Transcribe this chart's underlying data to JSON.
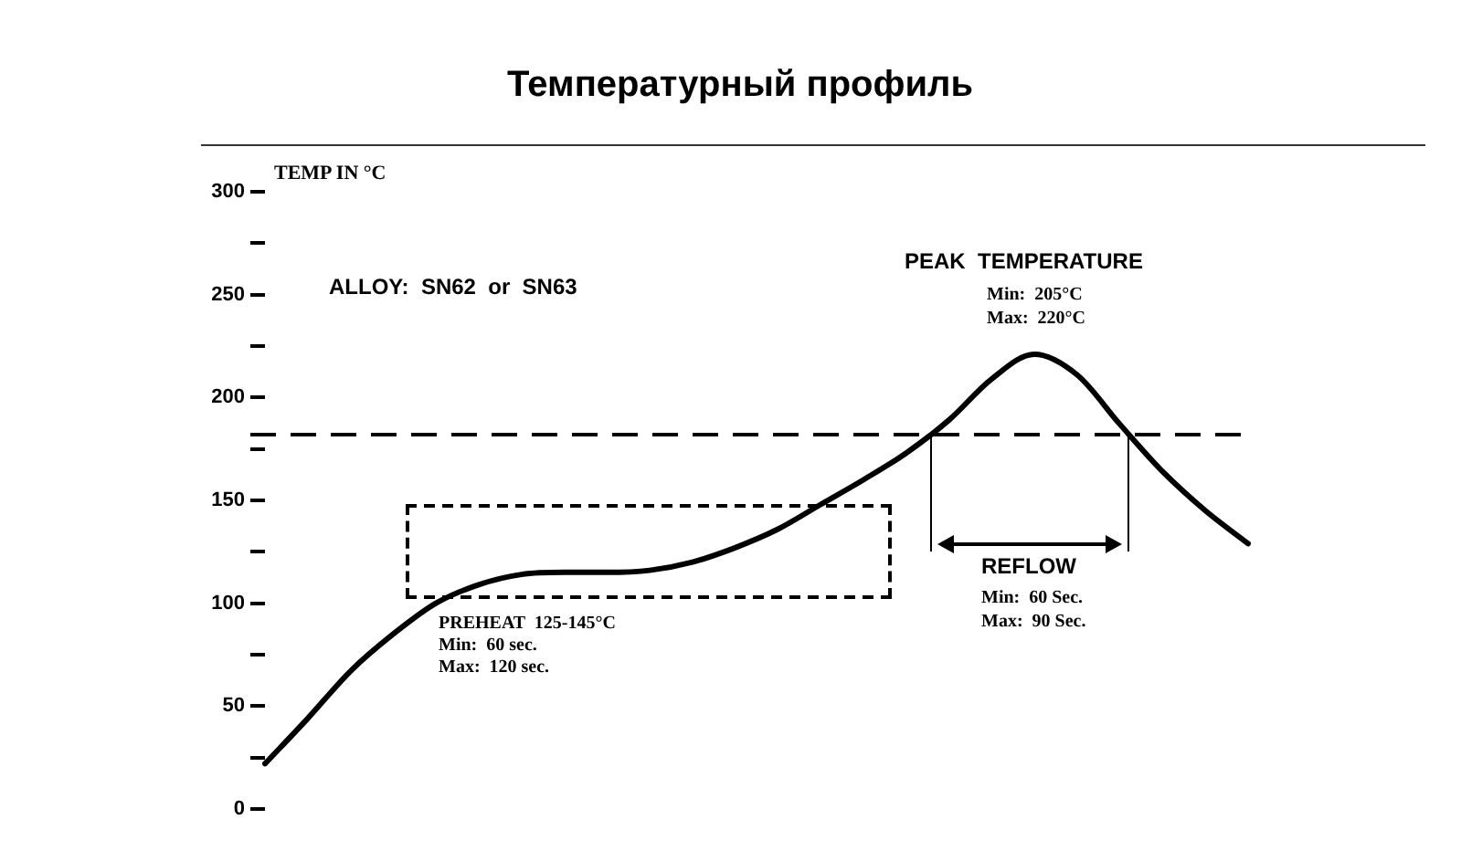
{
  "chart_data": {
    "type": "line",
    "title": "Температурный профиль",
    "ylabel": "TEMP IN °C",
    "categories": [
      null,
      null,
      null,
      null,
      null,
      null,
      null,
      null,
      null,
      null,
      null,
      null,
      null,
      null,
      null,
      null,
      null,
      null,
      null,
      null,
      null,
      null,
      null,
      null
    ],
    "series": [
      {
        "color": "#000000",
        "values": [
          22,
          44,
          67,
          85,
          100,
          109,
          114,
          115,
          115,
          116,
          120,
          127,
          136,
          148,
          160,
          173,
          189,
          209,
          221,
          211,
          187,
          164,
          145,
          129
        ]
      }
    ],
    "ylim": [
      0,
      300
    ],
    "yticks": [
      0,
      {
        "value": 25,
        "label": null
      },
      50,
      {
        "value": 75,
        "label": null
      },
      100,
      {
        "value": 125,
        "label": null
      },
      150,
      {
        "value": 175,
        "label": null
      },
      200,
      {
        "value": 225,
        "label": null
      },
      250,
      {
        "value": 275,
        "label": null
      },
      300
    ],
    "ref_lines": [
      {
        "axis": "y",
        "value": 182,
        "color": "#000000",
        "line_style": "dashed"
      }
    ],
    "annotations": [
      "ALLOY:  SN62  or  SN63",
      "PEAK  TEMPERATURE",
      "Min:  205°C",
      "Max:  220°C",
      "REFLOW",
      "Min:  60 Sec.",
      "Max:  90 Sec.",
      "PREHEAT  125-145°C",
      "Min:  60 sec.",
      "Max:  120 sec."
    ],
    "grid": false,
    "legend": false,
    "marker": "none",
    "line_style": "solid",
    "tick_labels": "y"
  }
}
